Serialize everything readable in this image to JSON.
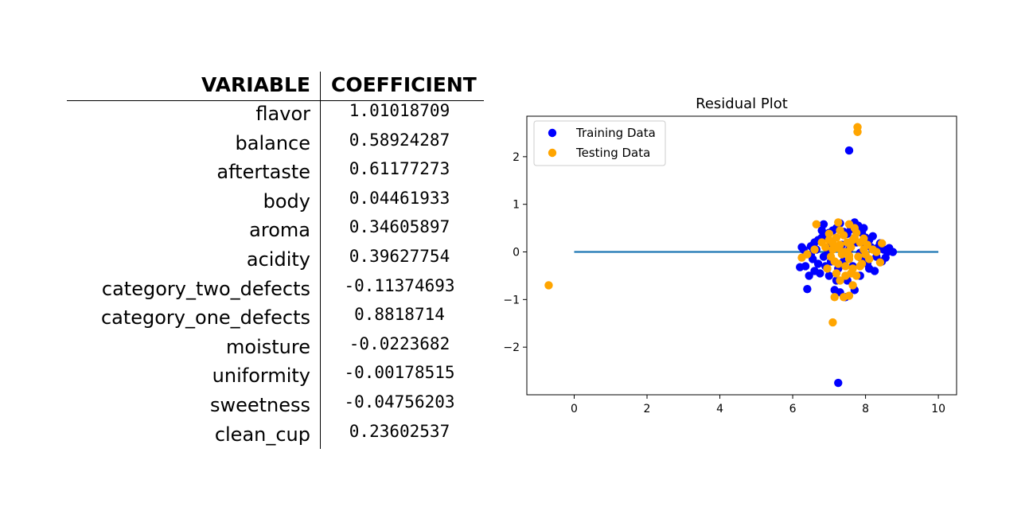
{
  "table": {
    "headers": {
      "variable": "VARIABLE",
      "coefficient": "COEFFICIENT"
    },
    "rows": [
      {
        "variable": "flavor",
        "coefficient": "1.01018709"
      },
      {
        "variable": "balance",
        "coefficient": "0.58924287"
      },
      {
        "variable": "aftertaste",
        "coefficient": "0.61177273"
      },
      {
        "variable": "body",
        "coefficient": "0.04461933"
      },
      {
        "variable": "aroma",
        "coefficient": "0.34605897"
      },
      {
        "variable": "acidity",
        "coefficient": "0.39627754"
      },
      {
        "variable": "category_two_defects",
        "coefficient": "-0.11374693"
      },
      {
        "variable": "category_one_defects",
        "coefficient": "0.8818714"
      },
      {
        "variable": "moisture",
        "coefficient": "-0.0223682"
      },
      {
        "variable": "uniformity",
        "coefficient": "-0.00178515"
      },
      {
        "variable": "sweetness",
        "coefficient": "-0.04756203"
      },
      {
        "variable": "clean_cup",
        "coefficient": "0.23602537"
      }
    ]
  },
  "chart_data": {
    "type": "scatter",
    "title": "Residual Plot",
    "xlabel": "",
    "ylabel": "",
    "xlim": [
      -1.3,
      10.5
    ],
    "ylim": [
      -3.0,
      2.85
    ],
    "xticks": [
      0,
      2,
      4,
      6,
      8,
      10
    ],
    "yticks": [
      -2,
      -1,
      0,
      1,
      2
    ],
    "legend_position": "top-left",
    "grid": false,
    "hline": {
      "y": 0,
      "x_from": 0,
      "x_to": 10,
      "color": "#1f77b4"
    },
    "series": [
      {
        "name": "Training Data",
        "color": "#0000ff",
        "points": [
          [
            7.55,
            2.13
          ],
          [
            7.25,
            -2.75
          ],
          [
            6.85,
            0.58
          ],
          [
            7.3,
            0.6
          ],
          [
            7.7,
            0.62
          ],
          [
            7.8,
            0.55
          ],
          [
            6.5,
            0.12
          ],
          [
            6.6,
            0.2
          ],
          [
            6.7,
            0.25
          ],
          [
            6.8,
            0.3
          ],
          [
            6.9,
            0.35
          ],
          [
            7.0,
            0.4
          ],
          [
            7.1,
            0.45
          ],
          [
            7.2,
            0.5
          ],
          [
            7.4,
            0.42
          ],
          [
            7.5,
            0.38
          ],
          [
            7.6,
            0.48
          ],
          [
            7.9,
            0.4
          ],
          [
            8.0,
            0.3
          ],
          [
            8.1,
            0.25
          ],
          [
            8.2,
            0.33
          ],
          [
            8.35,
            0.1
          ],
          [
            8.5,
            0.05
          ],
          [
            8.6,
            0.0
          ],
          [
            8.75,
            0.0
          ],
          [
            6.2,
            -0.32
          ],
          [
            6.35,
            -0.3
          ],
          [
            6.45,
            -0.5
          ],
          [
            6.6,
            -0.4
          ],
          [
            6.75,
            -0.45
          ],
          [
            6.9,
            -0.3
          ],
          [
            7.0,
            -0.5
          ],
          [
            7.15,
            -0.8
          ],
          [
            7.3,
            -0.85
          ],
          [
            7.5,
            -0.6
          ],
          [
            7.7,
            -0.8
          ],
          [
            7.85,
            -0.5
          ],
          [
            8.1,
            -0.35
          ],
          [
            8.25,
            -0.4
          ],
          [
            8.45,
            -0.2
          ],
          [
            6.4,
            -0.78
          ],
          [
            7.45,
            -0.95
          ],
          [
            6.3,
            0.05
          ],
          [
            6.55,
            -0.15
          ],
          [
            6.7,
            -0.25
          ],
          [
            6.85,
            -0.1
          ],
          [
            7.05,
            -0.2
          ],
          [
            7.25,
            -0.35
          ],
          [
            7.4,
            -0.2
          ],
          [
            7.65,
            -0.3
          ],
          [
            7.9,
            -0.15
          ],
          [
            8.05,
            -0.25
          ],
          [
            8.3,
            -0.1
          ],
          [
            8.4,
            0.18
          ],
          [
            6.65,
            0.05
          ],
          [
            7.0,
            0.1
          ],
          [
            7.35,
            0.15
          ],
          [
            7.75,
            0.2
          ],
          [
            8.15,
            0.1
          ],
          [
            6.95,
            -0.05
          ],
          [
            7.55,
            0.05
          ],
          [
            7.85,
            -0.02
          ],
          [
            8.0,
            0.12
          ],
          [
            6.5,
            -0.05
          ],
          [
            8.55,
            -0.12
          ],
          [
            7.2,
            -0.6
          ],
          [
            6.8,
            0.45
          ],
          [
            7.95,
            0.5
          ],
          [
            6.25,
            0.1
          ],
          [
            8.65,
            0.08
          ]
        ]
      },
      {
        "name": "Testing Data",
        "color": "#ffa500",
        "points": [
          [
            7.78,
            2.62
          ],
          [
            7.78,
            2.52
          ],
          [
            -0.7,
            -0.7
          ],
          [
            7.1,
            -1.48
          ],
          [
            7.15,
            -0.95
          ],
          [
            7.4,
            -0.95
          ],
          [
            7.55,
            -0.92
          ],
          [
            7.65,
            -0.7
          ],
          [
            7.3,
            -0.6
          ],
          [
            6.65,
            0.58
          ],
          [
            7.25,
            0.62
          ],
          [
            7.55,
            0.58
          ],
          [
            6.25,
            -0.12
          ],
          [
            6.4,
            -0.05
          ],
          [
            8.4,
            -0.22
          ],
          [
            8.45,
            0.18
          ],
          [
            6.8,
            0.2
          ],
          [
            6.9,
            0.1
          ],
          [
            7.0,
            0.25
          ],
          [
            7.05,
            -0.1
          ],
          [
            7.1,
            0.05
          ],
          [
            7.15,
            -0.2
          ],
          [
            7.2,
            0.3
          ],
          [
            7.25,
            -0.25
          ],
          [
            7.3,
            0.15
          ],
          [
            7.35,
            -0.05
          ],
          [
            7.4,
            0.35
          ],
          [
            7.45,
            -0.3
          ],
          [
            7.5,
            0.2
          ],
          [
            7.55,
            -0.15
          ],
          [
            7.6,
            0.1
          ],
          [
            7.65,
            -0.35
          ],
          [
            7.7,
            0.3
          ],
          [
            7.75,
            0.4
          ],
          [
            7.8,
            -0.1
          ],
          [
            7.85,
            0.2
          ],
          [
            7.9,
            -0.25
          ],
          [
            7.95,
            0.05
          ],
          [
            8.0,
            -0.05
          ],
          [
            8.05,
            0.15
          ],
          [
            8.1,
            -0.15
          ],
          [
            8.2,
            0.05
          ],
          [
            6.95,
            -0.35
          ],
          [
            7.2,
            -0.45
          ],
          [
            7.45,
            -0.5
          ],
          [
            7.6,
            -0.45
          ],
          [
            7.75,
            -0.5
          ],
          [
            7.0,
            0.38
          ],
          [
            7.3,
            0.45
          ],
          [
            7.7,
            0.5
          ],
          [
            6.6,
            0.05
          ],
          [
            8.3,
            0.0
          ],
          [
            7.4,
            0.0
          ],
          [
            7.5,
            0.0
          ],
          [
            7.1,
            0.18
          ],
          [
            7.65,
            0.25
          ],
          [
            7.85,
            -0.3
          ],
          [
            7.25,
            0.08
          ],
          [
            7.55,
            -0.08
          ],
          [
            7.95,
            0.28
          ]
        ]
      }
    ]
  }
}
